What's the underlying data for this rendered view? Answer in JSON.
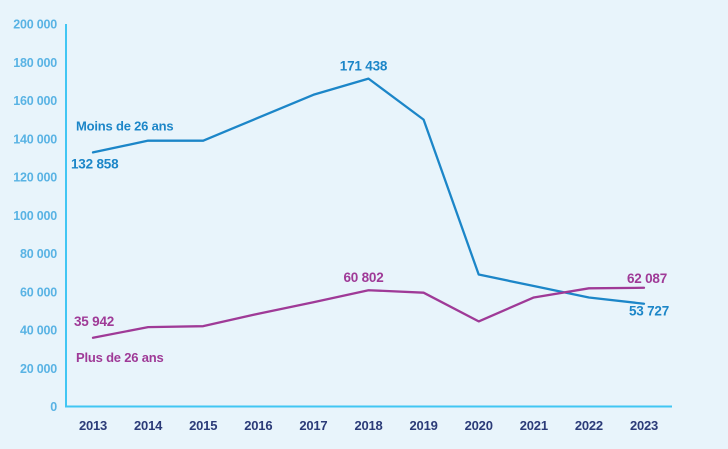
{
  "chart_data": {
    "type": "line",
    "title": "",
    "xlabel": "",
    "ylabel": "",
    "x": [
      2013,
      2014,
      2015,
      2016,
      2017,
      2018,
      2019,
      2020,
      2021,
      2022,
      2023
    ],
    "series": [
      {
        "name": "Moins de 26 ans",
        "color": "#1c86c8",
        "values": [
          132858,
          139000,
          139000,
          151000,
          163000,
          171438,
          150000,
          69000,
          63000,
          57000,
          53727
        ]
      },
      {
        "name": "Plus de 26 ans",
        "color": "#9f3a97",
        "values": [
          35942,
          41500,
          42000,
          48500,
          54500,
          60802,
          59500,
          44500,
          57000,
          61800,
          62087
        ]
      }
    ],
    "annotations": [
      {
        "series": 0,
        "year": 2013,
        "text": "132 858",
        "placement": "below-left"
      },
      {
        "series": 0,
        "year": 2018,
        "text": "171 438",
        "placement": "above"
      },
      {
        "series": 0,
        "year": 2023,
        "text": "53 727",
        "placement": "below-end"
      },
      {
        "series": 1,
        "year": 2013,
        "text": "35 942",
        "placement": "above-left"
      },
      {
        "series": 1,
        "year": 2018,
        "text": "60 802",
        "placement": "above"
      },
      {
        "series": 1,
        "year": 2023,
        "text": "62 087",
        "placement": "above-end"
      }
    ],
    "series_labels": [
      {
        "series": 0,
        "text": "Moins de 26 ans",
        "year": 2013,
        "placement": "label-above-start"
      },
      {
        "series": 1,
        "text": "Plus de 26 ans",
        "year": 2013,
        "placement": "label-below-start"
      }
    ],
    "ylim": [
      0,
      200000
    ],
    "yticks": [
      0,
      20000,
      40000,
      60000,
      80000,
      100000,
      120000,
      140000,
      160000,
      180000,
      200000
    ],
    "ytick_labels": [
      "0",
      "20 000",
      "40 000",
      "60 000",
      "80 000",
      "100 000",
      "120 000",
      "140 000",
      "160 000",
      "180 000",
      "200 000"
    ],
    "grid": false,
    "legend_position": "inline-labels",
    "colors": {
      "background": "#e8f4fb",
      "axis": "#41c6f3",
      "ytick_text": "#59b3e4",
      "xtick_text": "#2b3b78",
      "series_under26": "#1c86c8",
      "series_over26": "#9f3a97"
    }
  }
}
